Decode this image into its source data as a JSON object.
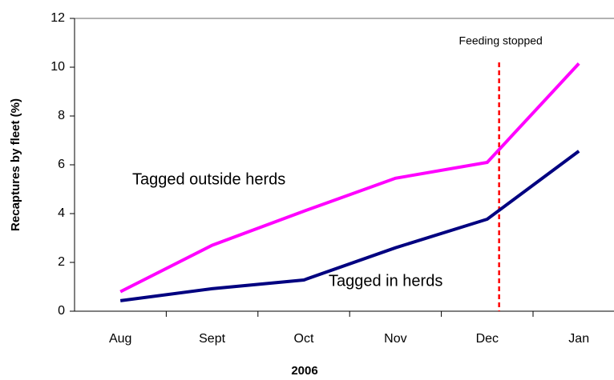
{
  "chart_data": {
    "type": "line",
    "xlabel": "2006",
    "ylabel": "Recaptures by fleet (%)",
    "categories": [
      "Aug",
      "Sept",
      "Oct",
      "Nov",
      "Dec",
      "Jan"
    ],
    "series": [
      {
        "name": "Tagged outside herds",
        "color": "#ff00ff",
        "values": [
          0.8,
          2.7,
          4.1,
          5.45,
          6.1,
          10.15
        ]
      },
      {
        "name": "Tagged in herds",
        "color": "#000080",
        "values": [
          0.43,
          0.92,
          1.28,
          2.6,
          3.77,
          6.56
        ]
      }
    ],
    "annotation": {
      "text": "Feeding stopped",
      "color": "#ff0000"
    },
    "ylim": [
      0,
      12
    ],
    "yticks": [
      0,
      2,
      4,
      6,
      8,
      10,
      12
    ]
  }
}
